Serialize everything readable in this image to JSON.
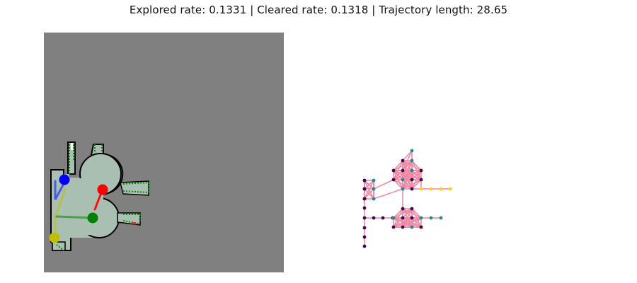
{
  "title": "Explored rate: 0.1331 | Cleared rate: 0.1318 | Trajectory length: 28.65",
  "colors": {
    "map_background": "#808080",
    "free_space": "#a8bfb2",
    "wall": "#000000",
    "frontier": "#0a8a0a",
    "graph_edge": "#f28aa6",
    "node_dark": "#3b0a4f",
    "node_teal": "#238a8d",
    "node_yellow": "#f5d21a"
  },
  "agents": [
    {
      "name": "red-agent",
      "color": "#ff0000"
    },
    {
      "name": "blue-agent",
      "color": "#0000ff"
    },
    {
      "name": "green-agent",
      "color": "#008000"
    },
    {
      "name": "yellow-agent",
      "color": "#bfbf00"
    }
  ],
  "icons": [
    "map-panel",
    "graph-panel"
  ]
}
